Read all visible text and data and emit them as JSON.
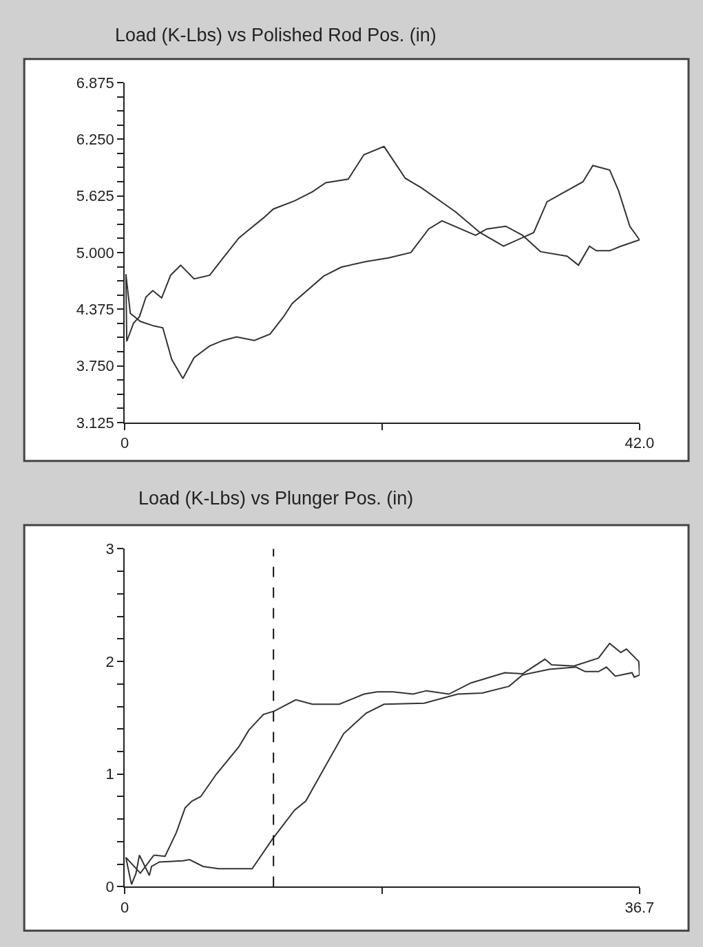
{
  "chart_data": [
    {
      "type": "line",
      "title": "Load (K-Lbs) vs Polished Rod Pos. (in)",
      "marker": "none",
      "line_style": "solid",
      "xlim": [
        0,
        42.0
      ],
      "xticks": [
        0,
        {
          "value": 21,
          "label": null
        },
        {
          "value": 42.0,
          "label": "42.0"
        }
      ],
      "ylim": [
        3.125,
        6.875
      ],
      "yticks": [
        {
          "value": 3.125,
          "label": "3.125"
        },
        {
          "value": 3.28125,
          "label": null
        },
        {
          "value": 3.4375,
          "label": null
        },
        {
          "value": 3.59375,
          "label": null
        },
        {
          "value": 3.75,
          "label": "3.750"
        },
        {
          "value": 3.90625,
          "label": null
        },
        {
          "value": 4.0625,
          "label": null
        },
        {
          "value": 4.21875,
          "label": null
        },
        {
          "value": 4.375,
          "label": "4.375"
        },
        {
          "value": 4.53125,
          "label": null
        },
        {
          "value": 4.6875,
          "label": null
        },
        {
          "value": 4.84375,
          "label": null
        },
        {
          "value": 5.0,
          "label": "5.000"
        },
        {
          "value": 5.15625,
          "label": null
        },
        {
          "value": 5.3125,
          "label": null
        },
        {
          "value": 5.46875,
          "label": null
        },
        {
          "value": 5.625,
          "label": "5.625"
        },
        {
          "value": 5.78125,
          "label": null
        },
        {
          "value": 5.9375,
          "label": null
        },
        {
          "value": 6.09375,
          "label": null
        },
        {
          "value": 6.25,
          "label": "6.250"
        },
        {
          "value": 6.40625,
          "label": null
        },
        {
          "value": 6.5625,
          "label": null
        },
        {
          "value": 6.71875,
          "label": null
        },
        {
          "value": 6.875,
          "label": "6.875"
        }
      ],
      "series": [
        {
          "color": "#333333",
          "x": [
            0.09,
            0.16,
            0.71,
            1.19,
            1.73,
            2.28,
            3.01,
            3.74,
            4.56,
            5.65,
            6.93,
            7.84,
            9.3,
            9.84,
            11.3,
            12.12,
            13.85,
            15.31,
            16.4,
            18.23,
            19.51,
            21.15,
            22.88,
            24.24,
            26.98,
            28.98,
            30.9,
            33.36,
            34.45,
            37.37,
            38.19,
            39.56,
            40.29,
            41.2,
            42.0
          ],
          "values": [
            4.76,
            4.02,
            4.22,
            4.29,
            4.51,
            4.58,
            4.5,
            4.75,
            4.86,
            4.71,
            4.75,
            4.91,
            5.16,
            5.22,
            5.38,
            5.48,
            5.57,
            5.67,
            5.77,
            5.81,
            6.08,
            6.17,
            5.82,
            5.71,
            5.45,
            5.22,
            5.07,
            5.22,
            5.56,
            5.78,
            5.96,
            5.91,
            5.68,
            5.29,
            5.14
          ]
        },
        {
          "color": "#333333",
          "x": [
            0.09,
            0.45,
            1.27,
            2.37,
            3.1,
            3.83,
            4.74,
            5.65,
            6.93,
            8.02,
            9.12,
            10.57,
            11.85,
            12.94,
            13.67,
            16.23,
            17.68,
            19.69,
            21.51,
            23.34,
            24.79,
            25.88,
            28.62,
            29.53,
            31.08,
            32.45,
            33.91,
            36.09,
            37.01,
            37.91,
            38.46,
            39.56,
            40.47,
            42.0
          ],
          "values": [
            4.76,
            4.33,
            4.24,
            4.19,
            4.17,
            3.82,
            3.61,
            3.84,
            3.97,
            4.03,
            4.07,
            4.03,
            4.1,
            4.29,
            4.44,
            4.74,
            4.84,
            4.9,
            4.94,
            5.0,
            5.26,
            5.35,
            5.19,
            5.26,
            5.29,
            5.19,
            5.01,
            4.96,
            4.86,
            5.07,
            5.02,
            5.02,
            5.07,
            5.14
          ]
        }
      ]
    },
    {
      "type": "line",
      "title": "Load (K-Lbs) vs Plunger Pos. (in)",
      "marker": "none",
      "line_style": "solid",
      "xlim": [
        0,
        36.7
      ],
      "xticks": [
        0,
        {
          "value": 18.35,
          "label": null
        },
        {
          "value": 36.7,
          "label": "36.7"
        }
      ],
      "ylim": [
        0,
        3
      ],
      "yticks": [
        0,
        {
          "value": 0.2,
          "label": null
        },
        {
          "value": 0.4,
          "label": null
        },
        {
          "value": 0.6,
          "label": null
        },
        {
          "value": 0.8,
          "label": null
        },
        1,
        {
          "value": 1.2,
          "label": null
        },
        {
          "value": 1.4,
          "label": null
        },
        {
          "value": 1.6,
          "label": null
        },
        {
          "value": 1.8,
          "label": null
        },
        2,
        {
          "value": 2.2,
          "label": null
        },
        {
          "value": 2.4,
          "label": null
        },
        {
          "value": 2.6,
          "label": null
        },
        {
          "value": 2.8,
          "label": null
        },
        3
      ],
      "ref_lines": [
        {
          "axis": "x",
          "value": 10.6,
          "label": null,
          "color": "#111111",
          "line_style": "dashed"
        }
      ],
      "series": [
        {
          "color": "#333333",
          "x": [
            2.07,
            2.87,
            3.67,
            4.3,
            4.78,
            5.41,
            6.53,
            8.12,
            8.84,
            9.88,
            10.67,
            12.19,
            13.38,
            15.29,
            17.05,
            18.0,
            19.11,
            20.55,
            21.5,
            23.1,
            24.69,
            27.08,
            28.35,
            29.95,
            30.43,
            32.02,
            33.77,
            34.56,
            35.36,
            35.76,
            36.64,
            36.7
          ],
          "values": [
            0.28,
            0.27,
            0.48,
            0.7,
            0.76,
            0.8,
            1.0,
            1.24,
            1.39,
            1.53,
            1.56,
            1.66,
            1.62,
            1.62,
            1.71,
            1.73,
            1.73,
            1.71,
            1.74,
            1.71,
            1.81,
            1.9,
            1.89,
            2.02,
            1.97,
            1.96,
            2.03,
            2.16,
            2.08,
            2.11,
            2.0,
            1.88
          ]
        },
        {
          "color": "#333333",
          "x": [
            2.07,
            1.11,
            0.08,
            0.24,
            0.48,
            0.8,
            1.04,
            1.75,
            1.91,
            2.47,
            4.14,
            4.62,
            5.58,
            6.69,
            9.08,
            10.51,
            12.1,
            12.9,
            14.34,
            15.61,
            17.2,
            18.48,
            21.35,
            23.74,
            25.48,
            27.4,
            28.35,
            30.26,
            32.17,
            32.82,
            33.77,
            34.33,
            34.97,
            36.16,
            36.32,
            36.7
          ],
          "values": [
            0.28,
            0.12,
            0.26,
            0.16,
            0.02,
            0.12,
            0.28,
            0.1,
            0.18,
            0.22,
            0.23,
            0.24,
            0.18,
            0.16,
            0.16,
            0.42,
            0.68,
            0.76,
            1.08,
            1.36,
            1.54,
            1.62,
            1.63,
            1.71,
            1.72,
            1.78,
            1.88,
            1.93,
            1.95,
            1.91,
            1.91,
            1.95,
            1.87,
            1.9,
            1.86,
            1.88
          ]
        }
      ]
    }
  ]
}
